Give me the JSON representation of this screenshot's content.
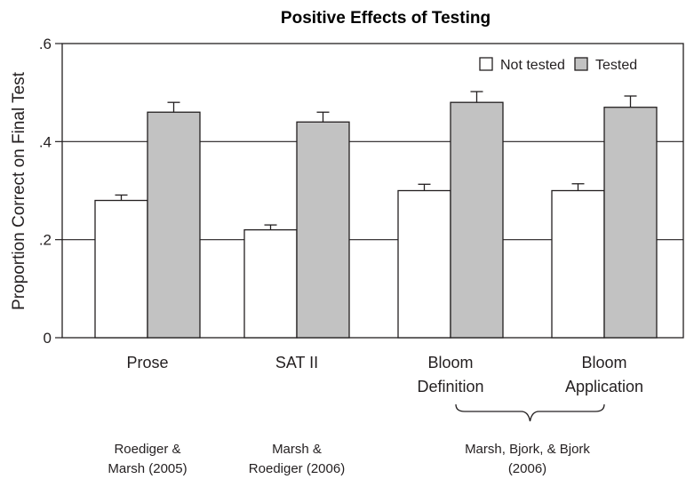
{
  "chart_data": {
    "type": "bar",
    "title": "Positive Effects of Testing",
    "xlabel": "",
    "ylabel": "Proportion Correct on Final Test",
    "ylim": [
      0,
      0.6
    ],
    "yticks": [
      0,
      0.2,
      0.4,
      0.6
    ],
    "ytick_labels": [
      "0",
      ".2",
      ".4",
      ".6"
    ],
    "grid": "horizontal at .2 and .4",
    "legend_position": "top-right",
    "categories": [
      [
        "Prose"
      ],
      [
        "SAT II"
      ],
      [
        "Bloom",
        "Definition"
      ],
      [
        "Bloom",
        "Application"
      ]
    ],
    "series": [
      {
        "name": "Not tested",
        "color": "#ffffff",
        "values": [
          0.28,
          0.22,
          0.3,
          0.3
        ],
        "errors": [
          0.011,
          0.01,
          0.013,
          0.014
        ]
      },
      {
        "name": "Tested",
        "color": "#c2c2c2",
        "values": [
          0.46,
          0.44,
          0.48,
          0.47
        ],
        "errors": [
          0.02,
          0.02,
          0.022,
          0.023
        ]
      }
    ],
    "citations": [
      {
        "lines": [
          "Roediger &",
          "Marsh (2005)"
        ],
        "spans": [
          0,
          0
        ]
      },
      {
        "lines": [
          "Marsh &",
          "Roediger (2006)"
        ],
        "spans": [
          1,
          1
        ]
      },
      {
        "lines": [
          "Marsh, Bjork, & Bjork",
          "(2006)"
        ],
        "spans": [
          2,
          3
        ],
        "brace": true
      }
    ]
  }
}
